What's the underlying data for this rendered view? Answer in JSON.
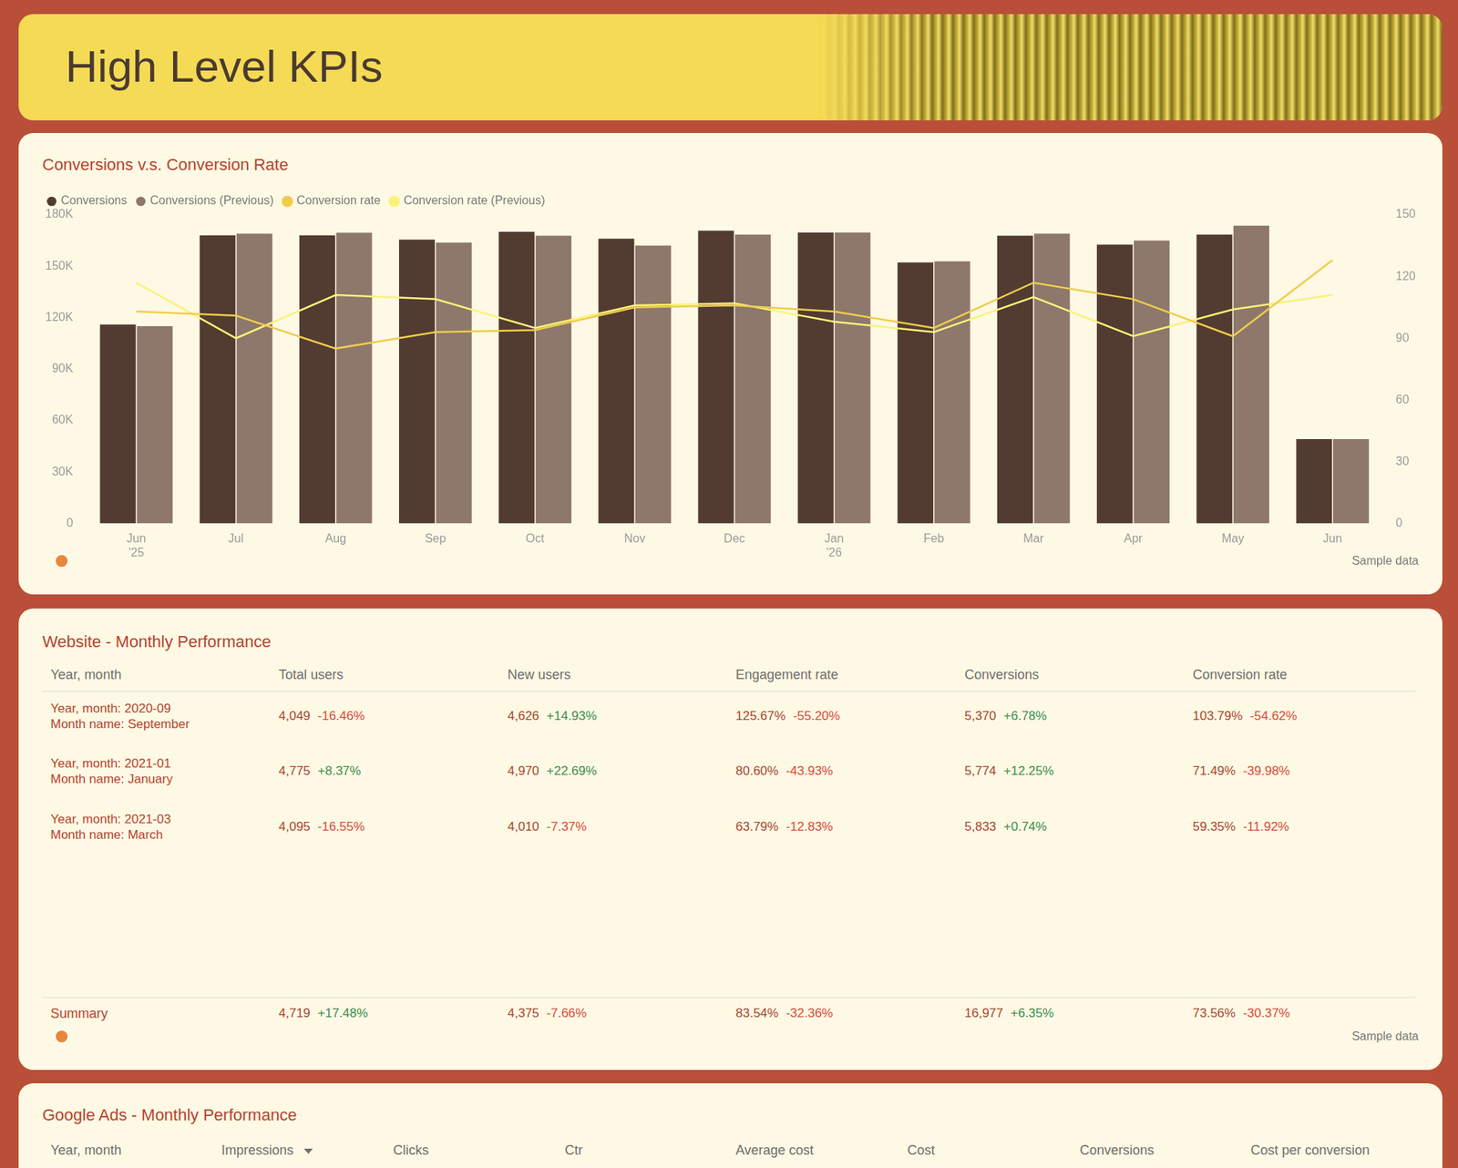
{
  "header": {
    "title": "High Level KPIs"
  },
  "chart_data": {
    "type": "bar",
    "title": "Conversions v.s. Conversion Rate",
    "categories": [
      "Jun '25",
      "Jul",
      "Aug",
      "Sep",
      "Oct",
      "Nov",
      "Dec",
      "Jan '26",
      "Feb",
      "Mar",
      "Apr",
      "May",
      "Jun"
    ],
    "series": [
      {
        "name": "Conversions",
        "color": "#523b30",
        "values": [
          116000,
          168000,
          168000,
          165500,
          170000,
          166000,
          170700,
          169600,
          152200,
          167800,
          162600,
          168400,
          49200
        ]
      },
      {
        "name": "Conversions (Previous)",
        "color": "#8d786b",
        "values": [
          115000,
          169000,
          169500,
          163800,
          167800,
          162000,
          168400,
          169600,
          152800,
          169000,
          164900,
          173600,
          49200
        ]
      },
      {
        "name": "Conversion rate",
        "color": "#efcd4a",
        "type": "line",
        "axis": "y2",
        "values": [
          103,
          101,
          85,
          93,
          94,
          105,
          106,
          103,
          95,
          117,
          109,
          91,
          128
        ]
      },
      {
        "name": "Conversion rate (Previous)",
        "color": "#fbf27a",
        "type": "line",
        "axis": "y2",
        "values": [
          117,
          90,
          111,
          109,
          95,
          106,
          107,
          98,
          93,
          110,
          91,
          104,
          111
        ]
      }
    ],
    "ylim": [
      0,
      180000
    ],
    "yticks": [
      0,
      {
        "value": 30000,
        "label": "30K"
      },
      {
        "value": 60000,
        "label": "60K"
      },
      {
        "value": 90000,
        "label": "90K"
      },
      {
        "value": 120000,
        "label": "120K"
      },
      {
        "value": 150000,
        "label": "150K"
      },
      {
        "value": 180000,
        "label": "180K"
      }
    ],
    "y2lim": [
      0,
      150
    ],
    "y2ticks": [
      0,
      30,
      60,
      90,
      120,
      150
    ],
    "grid": false,
    "legend": "top-left",
    "annotations": [
      "Sample data"
    ]
  },
  "website_table": {
    "title": "Website - Monthly Performance",
    "columns": [
      "Year, month",
      "Total users",
      "New users",
      "Engagement rate",
      "Conversions",
      "Conversion rate"
    ],
    "rows": [
      {
        "label": [
          "Year, month: 2020-09",
          "Month name: September"
        ],
        "cells": [
          [
            "4,049",
            "-16.46%"
          ],
          [
            "4,626",
            "+14.93%"
          ],
          [
            "125.67%",
            "-55.20%"
          ],
          [
            "5,370",
            "+6.78%"
          ],
          [
            "103.79%",
            "-54.62%"
          ]
        ]
      },
      {
        "label": [
          "Year, month: 2021-01",
          "Month name: January"
        ],
        "cells": [
          [
            "4,775",
            "+8.37%"
          ],
          [
            "4,970",
            "+22.69%"
          ],
          [
            "80.60%",
            "-43.93%"
          ],
          [
            "5,774",
            "+12.25%"
          ],
          [
            "71.49%",
            "-39.98%"
          ]
        ]
      },
      {
        "label": [
          "Year, month: 2021-03",
          "Month name: March"
        ],
        "cells": [
          [
            "4,095",
            "-16.55%"
          ],
          [
            "4,010",
            "-7.37%"
          ],
          [
            "63.79%",
            "-12.83%"
          ],
          [
            "5,833",
            "+0.74%"
          ],
          [
            "59.35%",
            "-11.92%"
          ]
        ]
      }
    ],
    "summary": {
      "label": "Summary",
      "cells": [
        [
          "4,719",
          "+17.48%"
        ],
        [
          "4,375",
          "-7.66%"
        ],
        [
          "83.54%",
          "-32.36%"
        ],
        [
          "16,977",
          "+6.35%"
        ],
        [
          "73.56%",
          "-30.37%"
        ]
      ]
    },
    "note": "Sample data"
  },
  "ads_table": {
    "title": "Google Ads - Monthly Performance",
    "columns": [
      "Year, month",
      "Impressions",
      "Clicks",
      "Ctr",
      "Average cost",
      "Cost",
      "Conversions",
      "Cost per conversion"
    ],
    "sorted_by": "Impressions"
  }
}
